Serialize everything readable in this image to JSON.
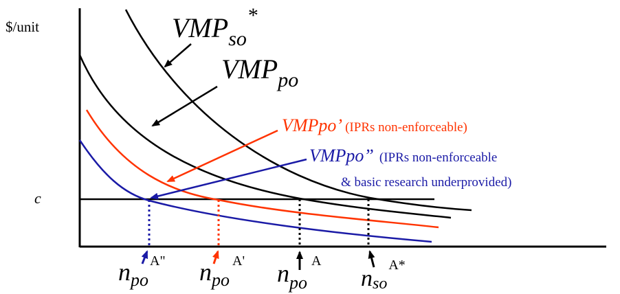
{
  "axes": {
    "y_label": "$/unit",
    "c_label": "c"
  },
  "curves": {
    "vmp_so": {
      "label": "VMP",
      "sub": "so",
      "sup": "*",
      "color": "#000000"
    },
    "vmp_po": {
      "label": "VMP",
      "sub": "po",
      "color": "#000000"
    },
    "vmp_po_prime": {
      "label": "VMPpo’",
      "note": "(IPRs  non-enforceable)",
      "color": "#ff3300"
    },
    "vmp_po_dprime": {
      "label": "VMPpo”",
      "note_line1": "(IPRs non-enforceable",
      "note_line2": "& basic research underprovided)",
      "color": "#1a1aa6"
    }
  },
  "x_markers": {
    "n_po_dprime": {
      "base": "n",
      "sub": "po",
      "sup": "A\"",
      "color": "#1a1aa6"
    },
    "n_po_prime": {
      "base": "n",
      "sub": "po",
      "sup": "A'",
      "color": "#ff3300"
    },
    "n_po": {
      "base": "n",
      "sub": "po",
      "sup": "A",
      "color": "#000000"
    },
    "n_so": {
      "base": "n",
      "sub": "so",
      "sup": "A*",
      "color": "#000000"
    }
  }
}
